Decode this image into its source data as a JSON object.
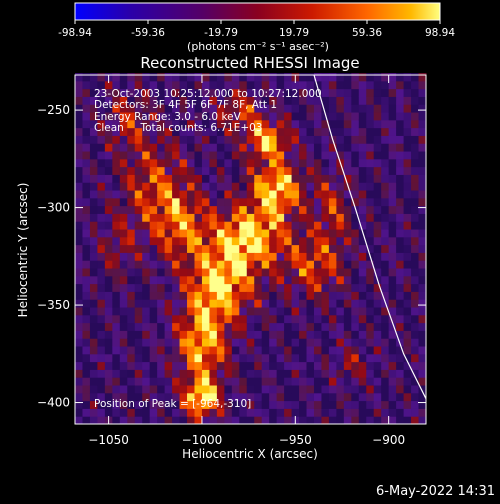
{
  "colorbar": {
    "tick_labels": [
      "-98.94",
      "-59.36",
      "-19.79",
      "19.79",
      "59.36",
      "98.94"
    ],
    "range": [
      -98.94,
      98.94
    ],
    "unit_label": "(photons cm⁻² s⁻¹ asec⁻²)",
    "colors": [
      "#0000ff",
      "#2a00aa",
      "#550066",
      "#8a0020",
      "#cc1a00",
      "#ff6600",
      "#ffb800",
      "#ffff80"
    ]
  },
  "chart_data": {
    "type": "heatmap",
    "title": "Reconstructed RHESSI Image",
    "xlabel": "Heliocentric X (arcsec)",
    "ylabel": "Heliocentric Y (arcsec)",
    "xlim": [
      -1068,
      -880
    ],
    "ylim": [
      -411,
      -232
    ],
    "x_ticks": [
      -1050,
      -1000,
      -950,
      -900
    ],
    "y_ticks": [
      -250,
      -300,
      -350,
      -400
    ],
    "x_tick_labels": [
      "−1050",
      "−1000",
      "−950",
      "−900"
    ],
    "y_tick_labels": [
      "−250",
      "−300",
      "−350",
      "−400"
    ],
    "annotations": [
      "23-Oct-2003 10:25:12.000 to 10:27:12.000",
      "Detectors: 3F 4F 5F 6F 7F 8F, Att 1",
      "Energy Range: 3.0 - 6.0 keV",
      "Clean     Total counts: 6.71E+03"
    ],
    "peak_label": "Position of Peak = [-964,-310]",
    "peak": [
      -964,
      -310
    ],
    "limb_curve": [
      [
        -940,
        -232
      ],
      [
        -930,
        -265
      ],
      [
        -918,
        -300
      ],
      [
        -905,
        -340
      ],
      [
        -892,
        -375
      ],
      [
        -880,
        -398
      ]
    ]
  },
  "footer": {
    "date": "6-May-2022 14:31"
  }
}
